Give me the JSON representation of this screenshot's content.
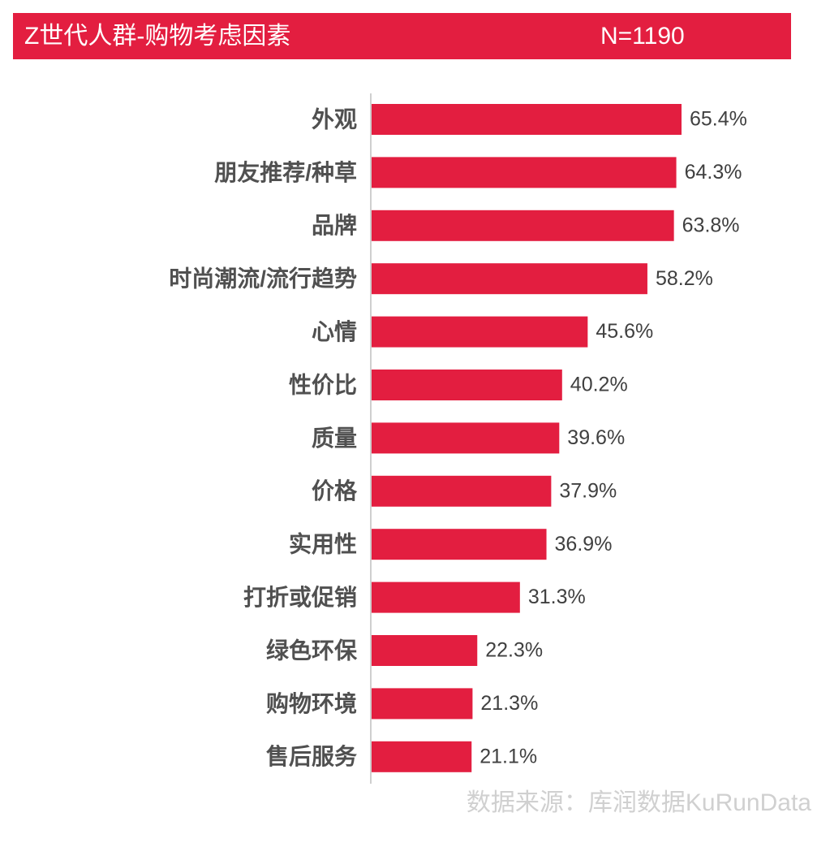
{
  "chart_data": {
    "type": "bar",
    "orientation": "horizontal",
    "title": "Z世代人群-购物考虑因素",
    "subtitle": "N=1190",
    "source": "数据来源：库润数据KuRunData",
    "color": "#e31e40",
    "categories": [
      "外观",
      "朋友推荐/种草",
      "品牌",
      "时尚潮流/流行趋势",
      "心情",
      "性价比",
      "质量",
      "价格",
      "实用性",
      "打折或促销",
      "绿色环保",
      "购物环境",
      "售后服务"
    ],
    "values": [
      65.4,
      64.3,
      63.8,
      58.2,
      45.6,
      40.2,
      39.6,
      37.9,
      36.9,
      31.3,
      22.3,
      21.3,
      21.1
    ],
    "value_labels": [
      "65.4%",
      "64.3%",
      "63.8%",
      "58.2%",
      "45.6%",
      "40.2%",
      "39.6%",
      "37.9%",
      "36.9%",
      "31.3%",
      "22.3%",
      "21.3%",
      "21.1%"
    ]
  }
}
